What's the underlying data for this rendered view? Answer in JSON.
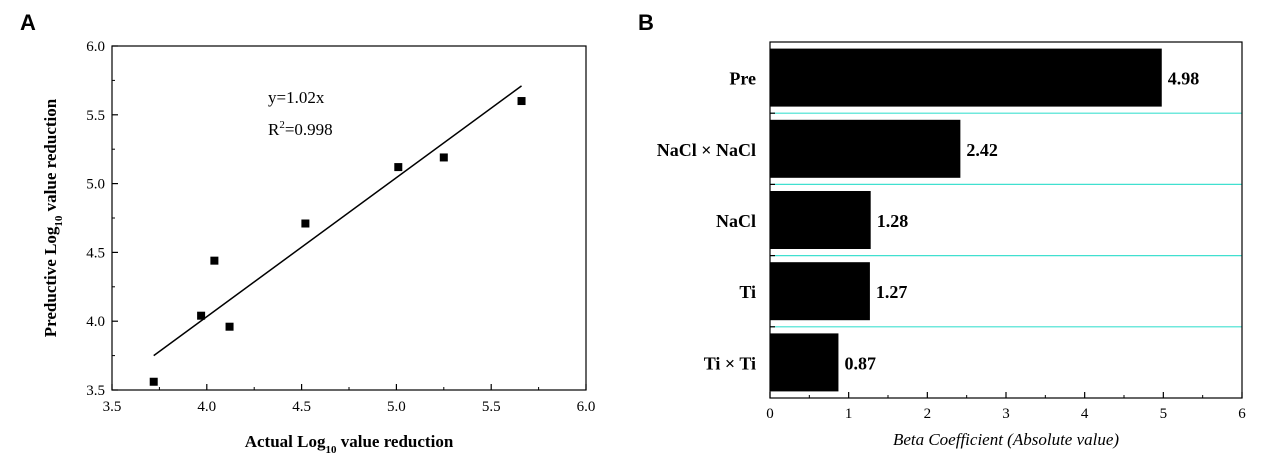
{
  "chart_data": [
    {
      "panel": "A",
      "type": "scatter",
      "xlabel_main": "Actual Log",
      "xlabel_sub": "10",
      "xlabel_tail": " value reduction",
      "ylabel_main": "Preductive Log",
      "ylabel_sub": "10",
      "ylabel_tail": " value reduction",
      "xlim": [
        3.5,
        6.0
      ],
      "ylim": [
        3.5,
        6.0
      ],
      "xticks": [
        "3.5",
        "4.0",
        "4.5",
        "5.0",
        "5.5",
        "6.0"
      ],
      "yticks": [
        "3.5",
        "4.0",
        "4.5",
        "5.0",
        "5.5",
        "6.0"
      ],
      "points": [
        {
          "x": 3.72,
          "y": 3.56
        },
        {
          "x": 3.97,
          "y": 4.04
        },
        {
          "x": 4.04,
          "y": 4.44
        },
        {
          "x": 4.12,
          "y": 3.96
        },
        {
          "x": 4.52,
          "y": 4.71
        },
        {
          "x": 5.01,
          "y": 5.12
        },
        {
          "x": 5.25,
          "y": 5.19
        },
        {
          "x": 5.66,
          "y": 5.6
        }
      ],
      "fit_line": {
        "x": [
          3.72,
          5.66
        ],
        "y": [
          3.75,
          5.71
        ]
      },
      "equation": "y=1.02x",
      "r2_main": "R",
      "r2_sup": "2",
      "r2_tail": "=0.998"
    },
    {
      "panel": "B",
      "type": "bar",
      "orientation": "horizontal",
      "categories": [
        "Pre",
        "NaCl × NaCl",
        "NaCl",
        "Ti",
        "Ti × Ti"
      ],
      "values": [
        4.98,
        2.42,
        1.28,
        1.27,
        0.87
      ],
      "value_labels": [
        "4.98",
        "2.42",
        "1.28",
        "1.27",
        "0.87"
      ],
      "xlabel": "Beta Coefficient (Absolute value)",
      "xlim": [
        0,
        6
      ],
      "xticks": [
        "0",
        "1",
        "2",
        "3",
        "4",
        "5",
        "6"
      ],
      "separator_color": "#40e0d0",
      "bar_color": "#000000"
    }
  ]
}
